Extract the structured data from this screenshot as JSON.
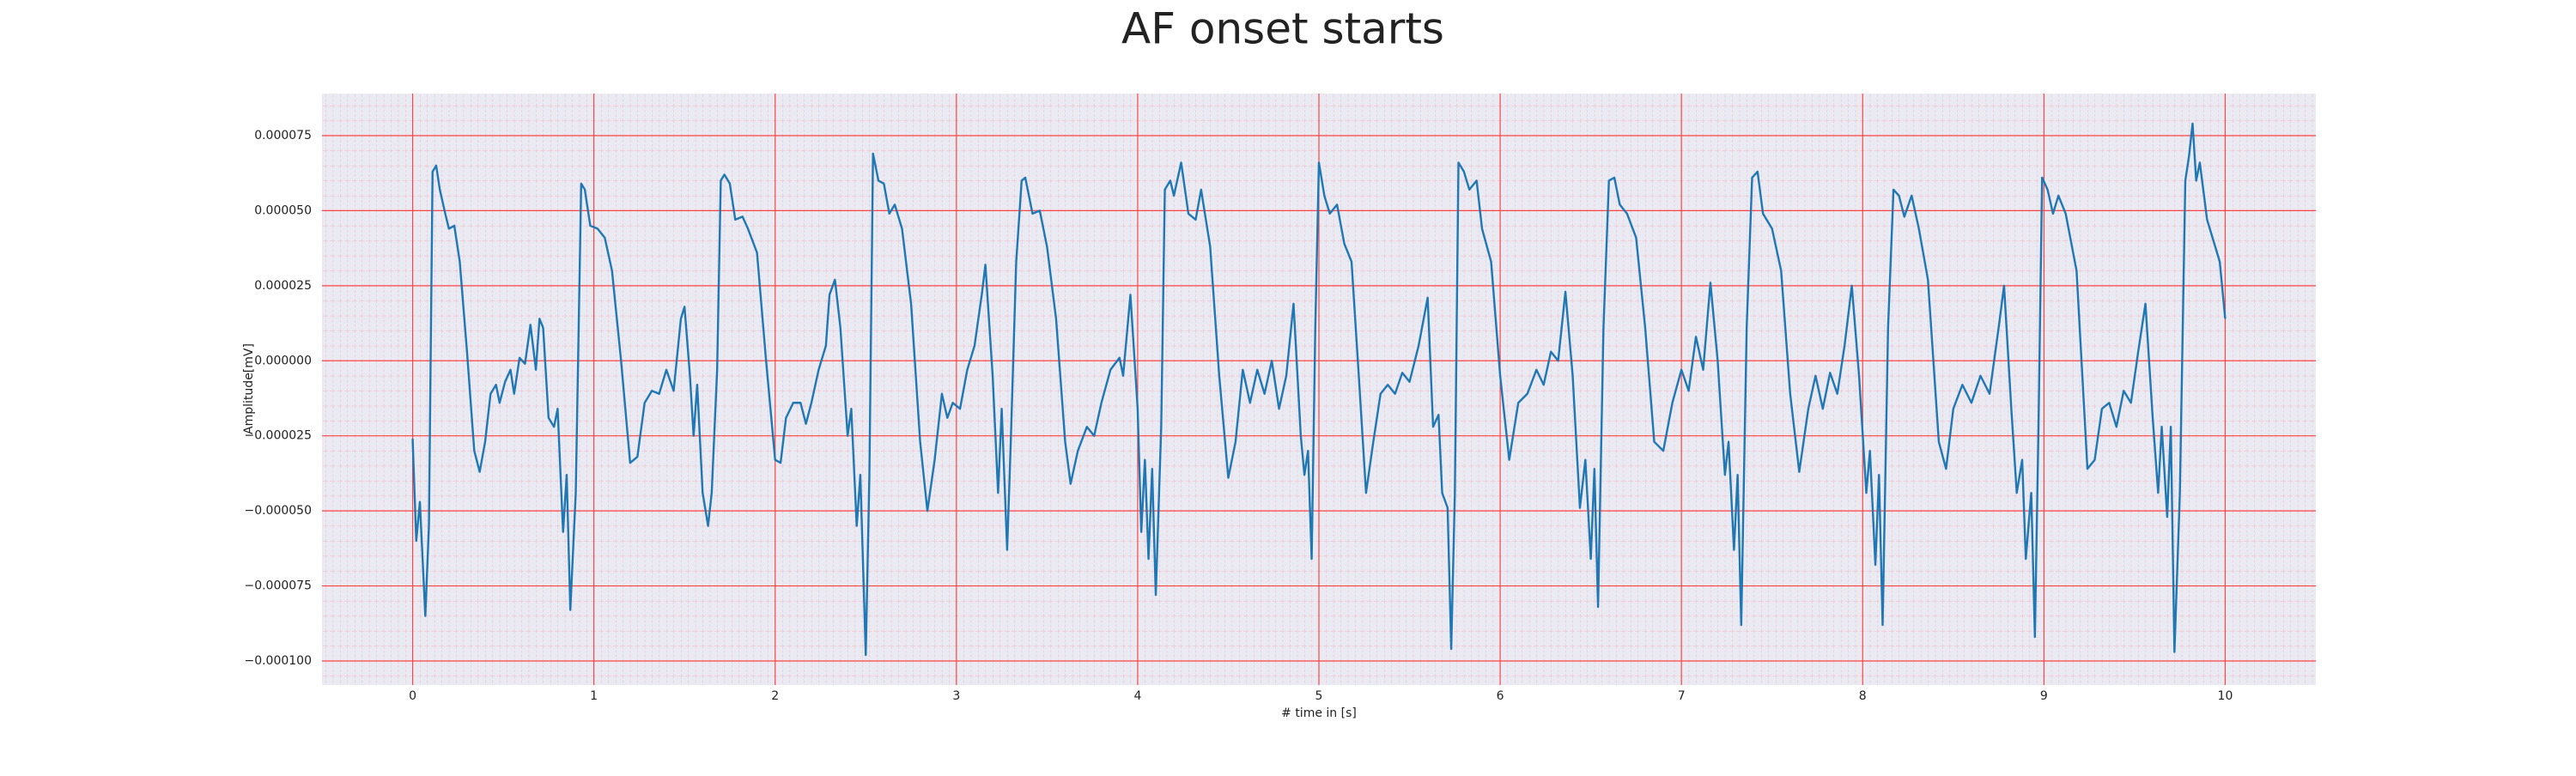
{
  "chart_data": {
    "type": "line",
    "title": "AF onset starts",
    "xlabel": "# time in [s]",
    "ylabel": "Amplitude[mV]",
    "color": "#1f77b4",
    "background": "#eaeaf2",
    "grid": true,
    "grid_color": "#ff4444",
    "minor_grid_color": "#f5b5c5",
    "xlim": [
      -0.5,
      10.5
    ],
    "ylim": [
      -0.000108,
      8.9e-05
    ],
    "xticks": [
      0,
      1,
      2,
      3,
      4,
      5,
      6,
      7,
      8,
      9,
      10
    ],
    "yticks": [
      {
        "value": 7.5e-05,
        "label": "0.000075"
      },
      {
        "value": 5e-05,
        "label": "0.000050"
      },
      {
        "value": 2.5e-05,
        "label": "0.000025"
      },
      {
        "value": 0,
        "label": "0.000000"
      },
      {
        "value": -2.5e-05,
        "label": "−0.000025"
      },
      {
        "value": -5e-05,
        "label": "−0.000050"
      },
      {
        "value": -7.5e-05,
        "label": "−0.000075"
      },
      {
        "value": -0.0001,
        "label": "−0.000100"
      }
    ],
    "x": [
      0,
      0.02,
      0.04,
      0.07,
      0.09,
      0.11,
      0.13,
      0.15,
      0.18,
      0.2,
      0.23,
      0.26,
      0.3,
      0.34,
      0.37,
      0.4,
      0.43,
      0.46,
      0.48,
      0.51,
      0.54,
      0.56,
      0.59,
      0.62,
      0.65,
      0.68,
      0.7,
      0.72,
      0.75,
      0.78,
      0.8,
      0.83,
      0.85,
      0.87,
      0.9,
      0.93,
      0.95,
      0.98,
      1.02,
      1.06,
      1.1,
      1.15,
      1.2,
      1.24,
      1.28,
      1.32,
      1.36,
      1.4,
      1.44,
      1.48,
      1.5,
      1.53,
      1.55,
      1.57,
      1.6,
      1.63,
      1.65,
      1.68,
      1.7,
      1.72,
      1.75,
      1.78,
      1.82,
      1.85,
      1.9,
      1.95,
      2.0,
      2.03,
      2.06,
      2.1,
      2.14,
      2.17,
      2.2,
      2.24,
      2.28,
      2.3,
      2.33,
      2.36,
      2.4,
      2.42,
      2.45,
      2.47,
      2.5,
      2.52,
      2.54,
      2.57,
      2.6,
      2.63,
      2.66,
      2.7,
      2.75,
      2.8,
      2.84,
      2.88,
      2.92,
      2.95,
      2.98,
      3.02,
      3.06,
      3.1,
      3.14,
      3.16,
      3.2,
      3.23,
      3.25,
      3.28,
      3.3,
      3.33,
      3.36,
      3.38,
      3.42,
      3.46,
      3.5,
      3.55,
      3.6,
      3.63,
      3.67,
      3.72,
      3.76,
      3.8,
      3.85,
      3.9,
      3.92,
      3.96,
      4.0,
      4.02,
      4.04,
      4.06,
      4.08,
      4.1,
      4.13,
      4.15,
      4.18,
      4.2,
      4.24,
      4.28,
      4.32,
      4.35,
      4.4,
      4.45,
      4.5,
      4.54,
      4.58,
      4.62,
      4.66,
      4.7,
      4.74,
      4.78,
      4.82,
      4.86,
      4.9,
      4.92,
      4.94,
      4.96,
      4.98,
      5.0,
      5.03,
      5.06,
      5.1,
      5.14,
      5.18,
      5.22,
      5.26,
      5.3,
      5.34,
      5.38,
      5.42,
      5.46,
      5.5,
      5.55,
      5.6,
      5.63,
      5.66,
      5.68,
      5.71,
      5.73,
      5.75,
      5.77,
      5.8,
      5.83,
      5.87,
      5.9,
      5.95,
      6.0,
      6.05,
      6.1,
      6.15,
      6.2,
      6.24,
      6.28,
      6.32,
      6.36,
      6.4,
      6.44,
      6.47,
      6.5,
      6.52,
      6.54,
      6.57,
      6.6,
      6.63,
      6.66,
      6.7,
      6.75,
      6.8,
      6.85,
      6.9,
      6.95,
      7.0,
      7.04,
      7.08,
      7.12,
      7.16,
      7.2,
      7.24,
      7.26,
      7.29,
      7.31,
      7.33,
      7.36,
      7.39,
      7.42,
      7.45,
      7.5,
      7.55,
      7.6,
      7.65,
      7.7,
      7.74,
      7.78,
      7.82,
      7.86,
      7.9,
      7.94,
      7.98,
      8.02,
      8.04,
      8.07,
      8.09,
      8.11,
      8.14,
      8.17,
      8.2,
      8.23,
      8.27,
      8.31,
      8.36,
      8.42,
      8.46,
      8.5,
      8.55,
      8.6,
      8.65,
      8.7,
      8.75,
      8.78,
      8.82,
      8.85,
      8.88,
      8.9,
      8.93,
      8.95,
      8.97,
      8.99,
      9.02,
      9.05,
      9.08,
      9.12,
      9.18,
      9.24,
      9.28,
      9.32,
      9.36,
      9.4,
      9.44,
      9.48,
      9.52,
      9.56,
      9.6,
      9.63,
      9.65,
      9.68,
      9.7,
      9.72,
      9.75,
      9.78,
      9.8,
      9.82,
      9.84,
      9.86,
      9.9,
      9.94,
      9.97,
      10.0
    ],
    "values": [
      -2.6e-05,
      -6e-05,
      -4.7e-05,
      -8.5e-05,
      -5.5e-05,
      6.3e-05,
      6.5e-05,
      5.7e-05,
      4.9e-05,
      4.4e-05,
      4.5e-05,
      3.3e-05,
      3e-06,
      -3e-05,
      -3.7e-05,
      -2.7e-05,
      -1.1e-05,
      -8e-06,
      -1.4e-05,
      -7e-06,
      -3e-06,
      -1.1e-05,
      1e-06,
      -1e-06,
      1.2e-05,
      -3e-06,
      1.4e-05,
      1.1e-05,
      -1.9e-05,
      -2.2e-05,
      -1.6e-05,
      -5.7e-05,
      -3.8e-05,
      -8.3e-05,
      -4.4e-05,
      5.9e-05,
      5.7e-05,
      4.5e-05,
      4.4e-05,
      4.1e-05,
      3e-05,
      0,
      -3.4e-05,
      -3.2e-05,
      -1.4e-05,
      -1e-05,
      -1.1e-05,
      -3e-06,
      -1e-05,
      1.4e-05,
      1.8e-05,
      -5e-06,
      -2.5e-05,
      -8e-06,
      -4.4e-05,
      -5.5e-05,
      -4.4e-05,
      -3e-06,
      6e-05,
      6.2e-05,
      5.9e-05,
      4.7e-05,
      4.8e-05,
      4.4e-05,
      3.6e-05,
      0,
      -3.3e-05,
      -3.4e-05,
      -1.9e-05,
      -1.4e-05,
      -1.4e-05,
      -2.1e-05,
      -1.4e-05,
      -3e-06,
      5e-06,
      2.2e-05,
      2.7e-05,
      1.1e-05,
      -2.5e-05,
      -1.6e-05,
      -5.5e-05,
      -3.8e-05,
      -9.8e-05,
      -3.8e-05,
      6.9e-05,
      6e-05,
      5.9e-05,
      4.9e-05,
      5.2e-05,
      4.4e-05,
      1.9e-05,
      -2.7e-05,
      -5e-05,
      -3.3e-05,
      -1.1e-05,
      -1.9e-05,
      -1.4e-05,
      -1.6e-05,
      -3e-06,
      5e-06,
      2.2e-05,
      3.2e-05,
      -5e-06,
      -4.4e-05,
      -1.6e-05,
      -6.3e-05,
      -2.7e-05,
      3.3e-05,
      6e-05,
      6.1e-05,
      4.9e-05,
      5e-05,
      3.8e-05,
      1.4e-05,
      -2.7e-05,
      -4.1e-05,
      -3e-05,
      -2.2e-05,
      -2.5e-05,
      -1.4e-05,
      -3e-06,
      1e-06,
      -5e-06,
      2.2e-05,
      -1.6e-05,
      -5.7e-05,
      -3.3e-05,
      -6.6e-05,
      -3.6e-05,
      -7.8e-05,
      -2.2e-05,
      5.7e-05,
      6e-05,
      5.5e-05,
      6.6e-05,
      4.9e-05,
      4.7e-05,
      5.7e-05,
      3.8e-05,
      -5e-06,
      -3.9e-05,
      -2.7e-05,
      -3e-06,
      -1.4e-05,
      -3e-06,
      -1.1e-05,
      0,
      -1.6e-05,
      -5e-06,
      1.9e-05,
      -2.5e-05,
      -3.8e-05,
      -3e-05,
      -6.6e-05,
      1.1e-05,
      6.6e-05,
      5.5e-05,
      4.9e-05,
      5.2e-05,
      3.9e-05,
      3.3e-05,
      -5e-06,
      -4.4e-05,
      -2.7e-05,
      -1.1e-05,
      -8e-06,
      -1.1e-05,
      -4e-06,
      -7e-06,
      5e-06,
      2.1e-05,
      -2.2e-05,
      -1.8e-05,
      -4.4e-05,
      -4.9e-05,
      -9.6e-05,
      -4.4e-05,
      6.6e-05,
      6.3e-05,
      5.7e-05,
      6e-05,
      4.4e-05,
      3.3e-05,
      -5e-06,
      -3.3e-05,
      -1.4e-05,
      -1.1e-05,
      -3e-06,
      -8e-06,
      3e-06,
      0,
      2.3e-05,
      -5e-06,
      -4.9e-05,
      -3.3e-05,
      -6.6e-05,
      -3.6e-05,
      -8.2e-05,
      1.1e-05,
      6e-05,
      6.1e-05,
      5.2e-05,
      4.9e-05,
      4.1e-05,
      1.1e-05,
      -2.7e-05,
      -3e-05,
      -1.4e-05,
      -3e-06,
      -1e-05,
      8e-06,
      -3e-06,
      2.6e-05,
      0,
      -3.8e-05,
      -2.7e-05,
      -6.3e-05,
      -3.8e-05,
      -8.8e-05,
      1.1e-05,
      6.1e-05,
      6.3e-05,
      4.9e-05,
      4.4e-05,
      3e-05,
      -1.1e-05,
      -3.7e-05,
      -1.6e-05,
      -5e-06,
      -1.6e-05,
      -4e-06,
      -1.1e-05,
      5e-06,
      2.5e-05,
      -5e-06,
      -4.4e-05,
      -3e-05,
      -6.8e-05,
      -3.8e-05,
      -8.8e-05,
      1.1e-05,
      5.7e-05,
      5.5e-05,
      4.8e-05,
      5.5e-05,
      4.4e-05,
      2.7e-05,
      -2.7e-05,
      -3.6e-05,
      -1.6e-05,
      -8e-06,
      -1.4e-05,
      -5e-06,
      -1.1e-05,
      1.1e-05,
      2.5e-05,
      -1.6e-05,
      -4.4e-05,
      -3.3e-05,
      -6.6e-05,
      -4.4e-05,
      -9.2e-05,
      -2.2e-05,
      6.1e-05,
      5.7e-05,
      4.9e-05,
      5.5e-05,
      4.9e-05,
      3e-05,
      -3.6e-05,
      -3.3e-05,
      -1.6e-05,
      -1.4e-05,
      -2.2e-05,
      -1e-05,
      -1.4e-05,
      3e-06,
      1.9e-05,
      -1.9e-05,
      -4.4e-05,
      -2.2e-05,
      -5.2e-05,
      -2.2e-05,
      -9.7e-05,
      -4.4e-05,
      6e-05,
      6.8e-05,
      7.9e-05,
      6e-05,
      6.6e-05,
      4.7e-05,
      3.9e-05,
      3.3e-05,
      1.4e-05
    ]
  }
}
